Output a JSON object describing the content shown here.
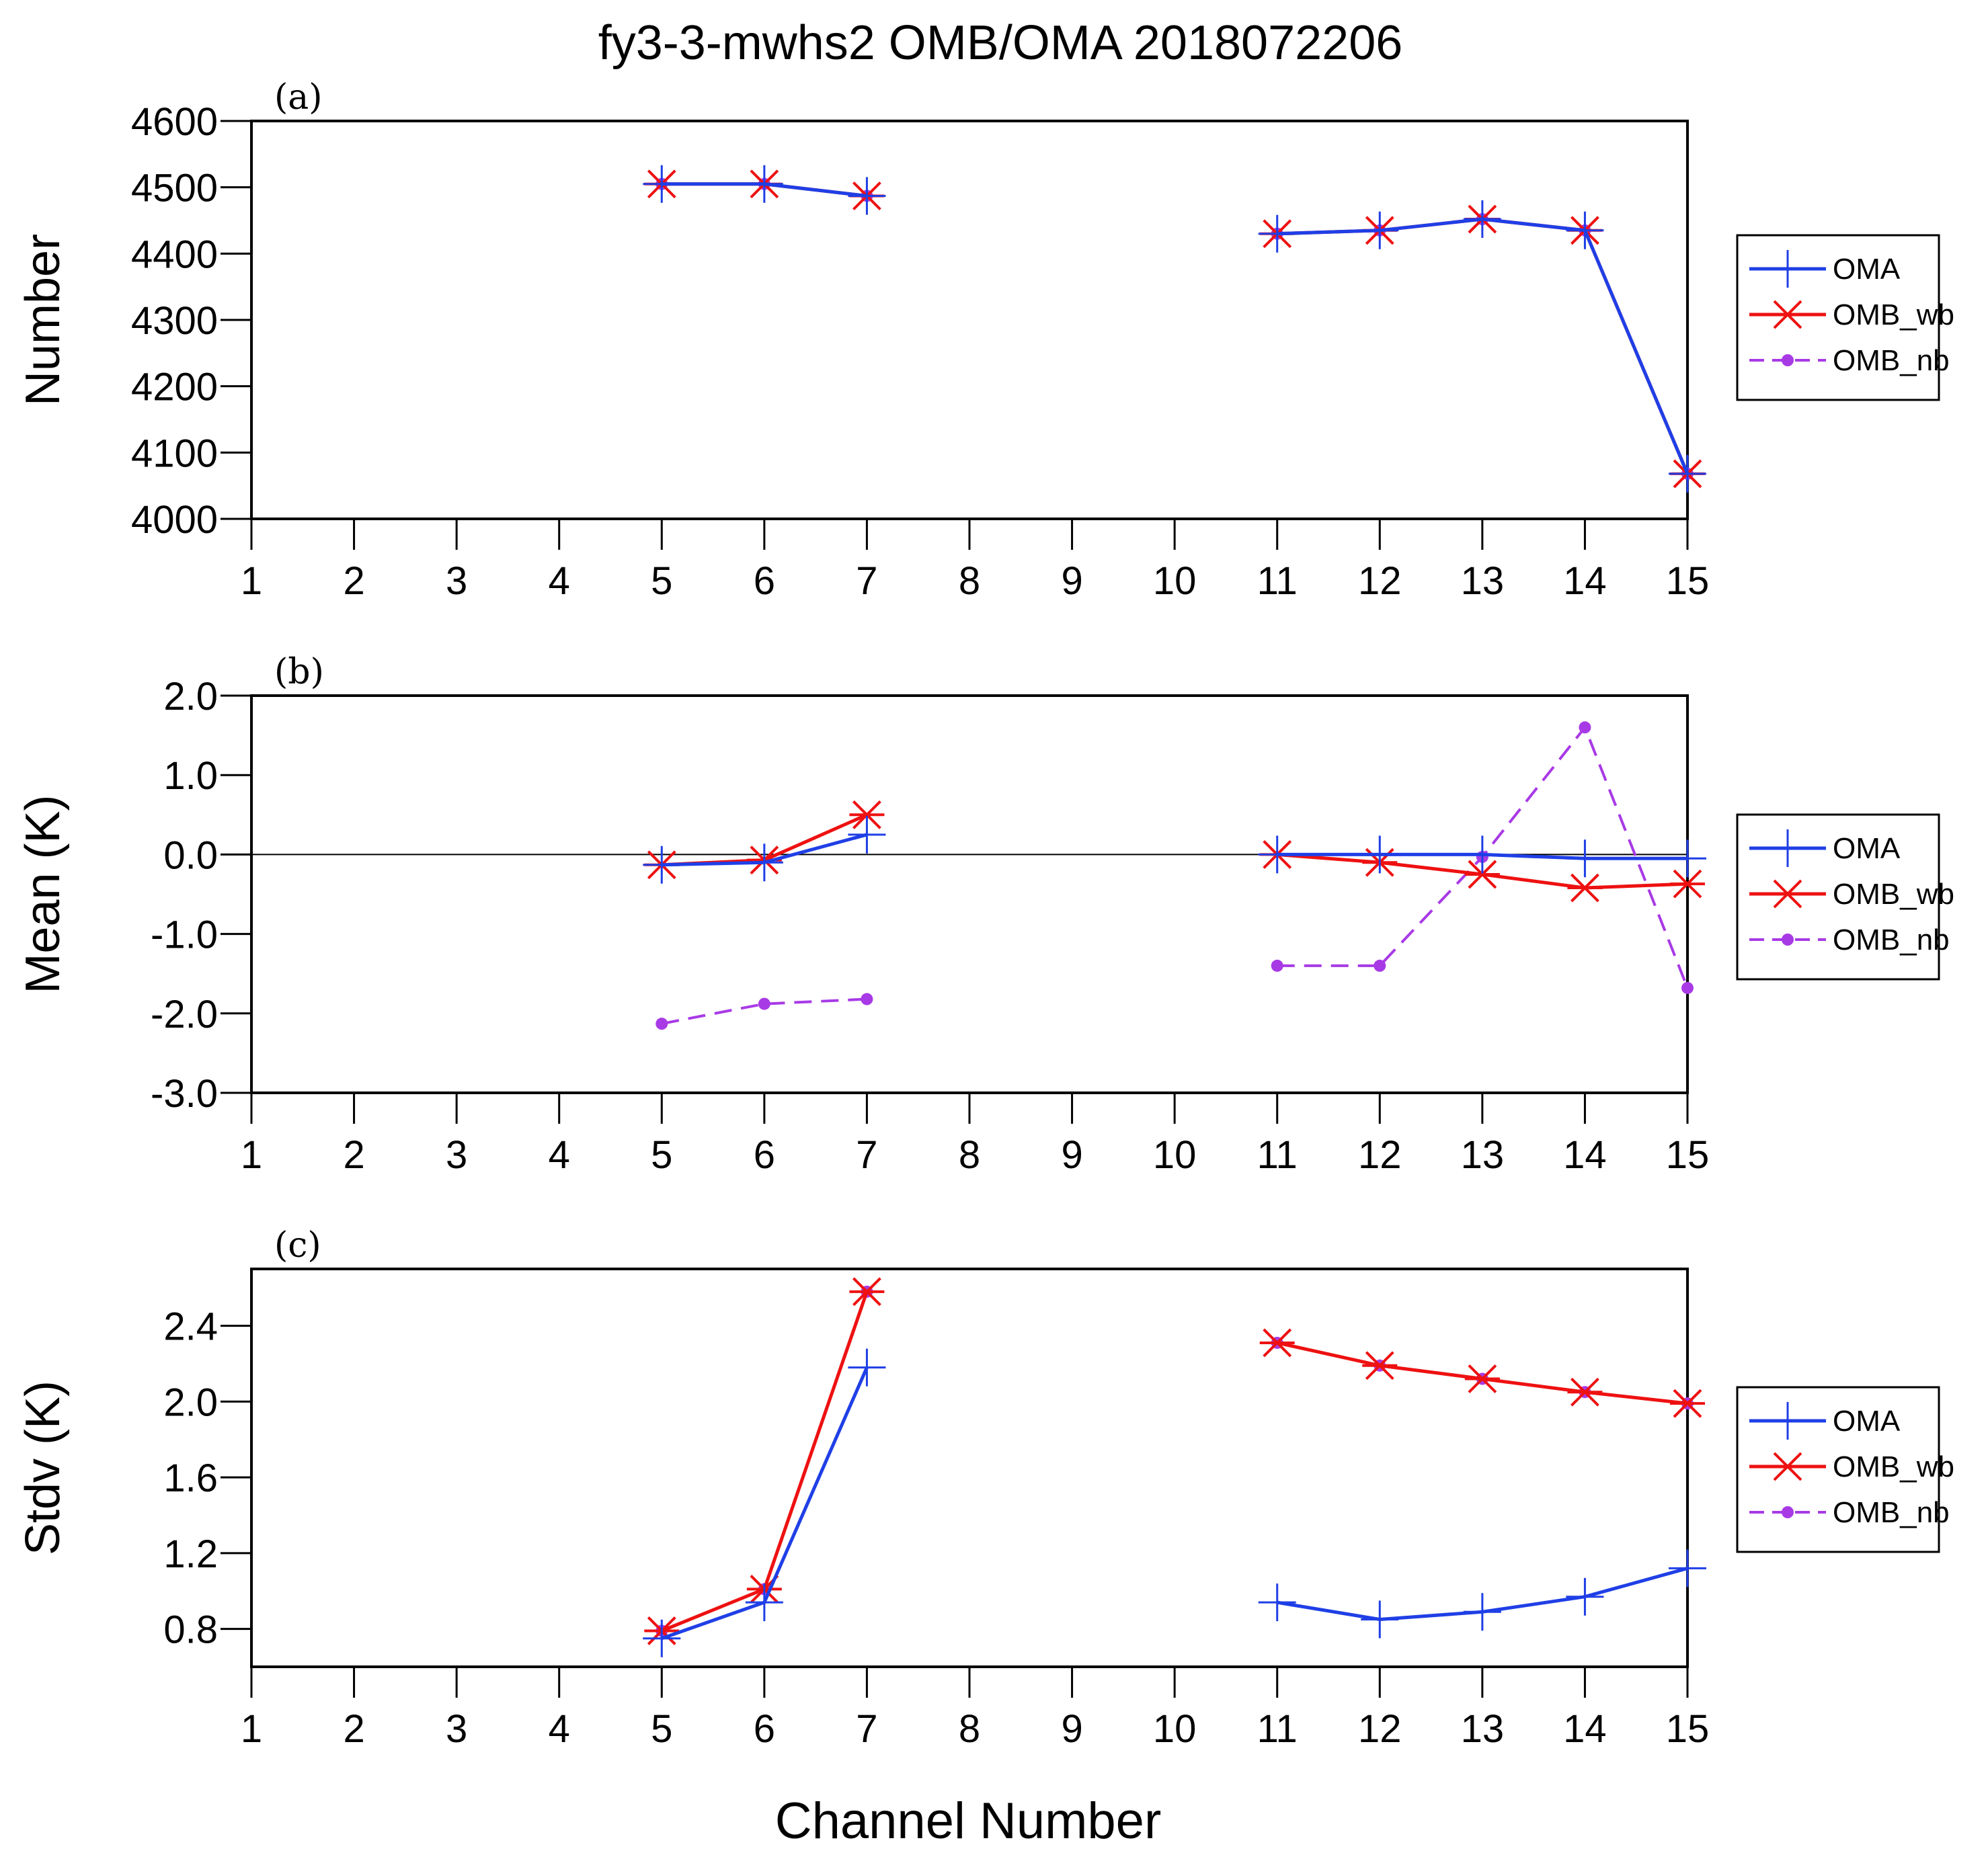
{
  "title": "fy3-3-mwhs2   OMB/OMA   2018072206",
  "xlabel": "Channel Number",
  "colors": {
    "OMA": "#1f3fe6",
    "OMB_wb": "#ee1111",
    "OMB_nb": "#a83ae6"
  },
  "chart_data": [
    {
      "type": "line",
      "panel_label": "(a)",
      "ylabel": "Number",
      "xlabel": "Channel Number",
      "xlim": [
        1,
        15
      ],
      "ylim": [
        4000,
        4600
      ],
      "x_ticks": [
        "1",
        "2",
        "3",
        "4",
        "5",
        "6",
        "7",
        "8",
        "9",
        "10",
        "11",
        "12",
        "13",
        "14",
        "15"
      ],
      "y_ticks": [
        "4000",
        "4100",
        "4200",
        "4300",
        "4400",
        "4500",
        "4600"
      ],
      "y_tick_values": [
        4000,
        4100,
        4200,
        4300,
        4400,
        4500,
        4600
      ],
      "zero_line": false,
      "legend": [
        "OMA",
        "OMB_wb",
        "OMB_nb"
      ],
      "series": [
        {
          "name": "OMA",
          "style": "solid",
          "marker": "plus",
          "x": [
            5,
            6,
            7,
            11,
            12,
            13,
            14,
            15
          ],
          "values": [
            4505,
            4505,
            4487,
            4430,
            4435,
            4452,
            4435,
            4068
          ]
        },
        {
          "name": "OMB_wb",
          "style": "solid",
          "marker": "asterisk",
          "x": [
            5,
            6,
            7,
            11,
            12,
            13,
            14,
            15
          ],
          "values": [
            4505,
            4505,
            4487,
            4430,
            4435,
            4452,
            4435,
            4068
          ]
        },
        {
          "name": "OMB_nb",
          "style": "dashed",
          "marker": "dot",
          "x": [
            5,
            6,
            7,
            11,
            12,
            13,
            14,
            15
          ],
          "values": [
            4505,
            4505,
            4487,
            4430,
            4435,
            4452,
            4435,
            4068
          ]
        }
      ]
    },
    {
      "type": "line",
      "panel_label": "(b)",
      "ylabel": "Mean (K)",
      "xlabel": "Channel Number",
      "xlim": [
        1,
        15
      ],
      "ylim": [
        -3.0,
        2.0
      ],
      "x_ticks": [
        "1",
        "2",
        "3",
        "4",
        "5",
        "6",
        "7",
        "8",
        "9",
        "10",
        "11",
        "12",
        "13",
        "14",
        "15"
      ],
      "y_ticks": [
        "-3.0",
        "-2.0",
        "-1.0",
        "0.0",
        "1.0",
        "2.0"
      ],
      "y_tick_values": [
        -3.0,
        -2.0,
        -1.0,
        0.0,
        1.0,
        2.0
      ],
      "zero_line": true,
      "legend": [
        "OMA",
        "OMB_wb",
        "OMB_nb"
      ],
      "series": [
        {
          "name": "OMA",
          "style": "solid",
          "marker": "plus",
          "x": [
            5,
            6,
            7,
            11,
            12,
            13,
            14,
            15
          ],
          "values": [
            -0.13,
            -0.1,
            0.25,
            0.0,
            0.0,
            0.0,
            -0.05,
            -0.05
          ]
        },
        {
          "name": "OMB_wb",
          "style": "solid",
          "marker": "asterisk",
          "x": [
            5,
            6,
            7,
            11,
            12,
            13,
            14,
            15
          ],
          "values": [
            -0.13,
            -0.07,
            0.5,
            0.0,
            -0.1,
            -0.25,
            -0.42,
            -0.37
          ]
        },
        {
          "name": "OMB_nb",
          "style": "dashed",
          "marker": "dot",
          "x": [
            5,
            6,
            7,
            11,
            12,
            13,
            14,
            15
          ],
          "values": [
            -2.13,
            -1.88,
            -1.82,
            -1.4,
            -1.4,
            -0.03,
            1.6,
            -1.68
          ]
        }
      ]
    },
    {
      "type": "line",
      "panel_label": "(c)",
      "ylabel": "Stdv (K)",
      "xlabel": "Channel Number",
      "xlim": [
        1,
        15
      ],
      "ylim": [
        0.6,
        2.7
      ],
      "x_ticks": [
        "1",
        "2",
        "3",
        "4",
        "5",
        "6",
        "7",
        "8",
        "9",
        "10",
        "11",
        "12",
        "13",
        "14",
        "15"
      ],
      "y_ticks": [
        "0.8",
        "1.2",
        "1.6",
        "2.0",
        "2.4"
      ],
      "y_tick_values": [
        0.8,
        1.2,
        1.6,
        2.0,
        2.4
      ],
      "zero_line": false,
      "legend": [
        "OMA",
        "OMB_wb",
        "OMB_nb"
      ],
      "series": [
        {
          "name": "OMA",
          "style": "solid",
          "marker": "plus",
          "x": [
            5,
            6,
            7,
            11,
            12,
            13,
            14,
            15
          ],
          "values": [
            0.75,
            0.94,
            2.18,
            0.94,
            0.85,
            0.89,
            0.97,
            1.12
          ]
        },
        {
          "name": "OMB_wb",
          "style": "solid",
          "marker": "asterisk",
          "x": [
            5,
            6,
            7,
            11,
            12,
            13,
            14,
            15
          ],
          "values": [
            0.79,
            1.01,
            2.58,
            2.31,
            2.19,
            2.12,
            2.05,
            1.99
          ]
        },
        {
          "name": "OMB_nb",
          "style": "dashed",
          "marker": "dot",
          "x": [
            5,
            6,
            7,
            11,
            12,
            13,
            14,
            15
          ],
          "values": [
            0.79,
            1.01,
            2.58,
            2.31,
            2.19,
            2.12,
            2.05,
            1.99
          ]
        }
      ]
    }
  ]
}
